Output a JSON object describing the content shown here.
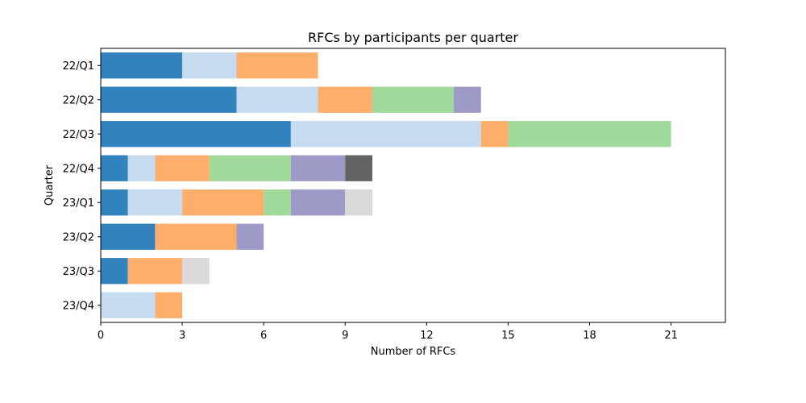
{
  "chart_data": {
    "type": "bar",
    "orientation": "horizontal",
    "stacked": true,
    "title": "RFCs by participants per quarter",
    "xlabel": "Number of RFCs",
    "ylabel": "Quarter",
    "xlim": [
      0,
      23
    ],
    "xticks": [
      0,
      3,
      6,
      9,
      12,
      15,
      18,
      21
    ],
    "grid": false,
    "categories": [
      "22/Q1",
      "22/Q2",
      "22/Q3",
      "22/Q4",
      "23/Q1",
      "23/Q2",
      "23/Q3",
      "23/Q4"
    ],
    "series": [
      {
        "color": "#3182bd",
        "values": [
          3,
          5,
          7,
          1,
          1,
          2,
          1,
          0
        ]
      },
      {
        "color": "#c6dbef",
        "values": [
          2,
          3,
          7,
          1,
          2,
          0,
          0,
          2
        ]
      },
      {
        "color": "#fdae6b",
        "values": [
          3,
          2,
          1,
          2,
          3,
          3,
          2,
          1
        ]
      },
      {
        "color": "#a1d99b",
        "values": [
          0,
          3,
          6,
          3,
          1,
          0,
          0,
          0
        ]
      },
      {
        "color": "#9e9ac8",
        "values": [
          0,
          1,
          0,
          2,
          2,
          1,
          0,
          0
        ]
      },
      {
        "color": "#636363",
        "values": [
          0,
          0,
          0,
          1,
          0,
          0,
          0,
          0
        ]
      },
      {
        "color": "#d9d9d9",
        "values": [
          0,
          0,
          0,
          0,
          1,
          0,
          1,
          0
        ]
      }
    ]
  }
}
